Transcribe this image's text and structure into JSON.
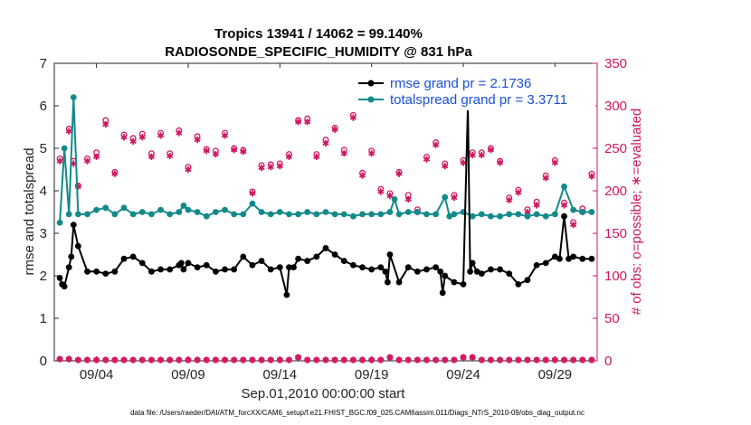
{
  "chart_data": {
    "type": "line",
    "title": "Tropics 13941 / 14062 = 99.140%",
    "subtitle": "RADIOSONDE_SPECIFIC_HUMIDITY @ 831 hPa",
    "xlabel": "Sep.01,2010 00:00:00 start",
    "ylabel": "rmse and totalspread",
    "y2label": "# of obs: o=possible; ∗=evaluated",
    "footnote": "data file: /Users/raeder/DAI/ATM_forcXX/CAM6_setup/f.e21.FHIST_BGC.f09_025.CAM6assim.011/Diags_NTrS_2010-09/obs_diag_output.nc",
    "xlim": [
      1.7,
      31.3
    ],
    "ylim": [
      0,
      7
    ],
    "y2lim": [
      0,
      350
    ],
    "x_ticks": [
      4,
      9,
      14,
      19,
      24,
      29
    ],
    "x_ticklabels": [
      "09/04",
      "09/09",
      "09/14",
      "09/19",
      "09/24",
      "09/29"
    ],
    "y_ticks": [
      0,
      1,
      2,
      3,
      4,
      5,
      6,
      7
    ],
    "y_ticklabels": [
      "0",
      "1",
      "2",
      "3",
      "4",
      "5",
      "6",
      "7"
    ],
    "y2_ticks": [
      0,
      50,
      100,
      150,
      200,
      250,
      300,
      350
    ],
    "y2_ticklabels": [
      "0",
      "50",
      "100",
      "150",
      "200",
      "250",
      "300",
      "350"
    ],
    "legend": [
      "rmse grand pr = 2.1736",
      "totalspread grand pr = 3.3711"
    ],
    "legend_position": "top-right",
    "colors": {
      "rmse": "#000000",
      "spread": "#138a8a",
      "obs": "#d01760",
      "axis": "#262626",
      "legend_text": "#1a4fd6"
    },
    "series": [
      {
        "name": "rmse",
        "x": [
          2.0,
          2.125,
          2.25,
          2.5,
          2.625,
          2.75,
          3.0,
          3.5,
          4.0,
          4.5,
          5.0,
          5.5,
          6.0,
          6.5,
          7.0,
          7.5,
          8.0,
          8.5,
          8.625,
          8.75,
          9.0,
          9.5,
          10.0,
          10.5,
          11.0,
          11.5,
          12.0,
          12.5,
          13.0,
          13.5,
          14.0,
          14.375,
          14.5,
          14.75,
          15.0,
          15.5,
          16.0,
          16.5,
          17.0,
          17.5,
          18.0,
          18.5,
          19.0,
          19.5,
          19.75,
          19.875,
          20.0,
          20.5,
          21.0,
          21.5,
          22.0,
          22.5,
          22.75,
          22.875,
          23.0,
          23.5,
          24.0,
          24.25,
          24.375,
          24.5,
          24.75,
          25.0,
          25.5,
          26.0,
          26.5,
          27.0,
          27.5,
          28.0,
          28.5,
          29.0,
          29.25,
          29.5,
          29.75,
          30.0,
          30.5,
          31.0
        ],
        "values": [
          1.95,
          1.8,
          1.75,
          2.2,
          2.45,
          3.2,
          2.7,
          2.1,
          2.1,
          2.05,
          2.1,
          2.4,
          2.45,
          2.3,
          2.1,
          2.15,
          2.15,
          2.25,
          2.3,
          2.15,
          2.3,
          2.2,
          2.25,
          2.1,
          2.15,
          2.15,
          2.45,
          2.25,
          2.35,
          2.15,
          2.2,
          1.55,
          2.2,
          2.2,
          2.4,
          2.35,
          2.45,
          2.65,
          2.5,
          2.35,
          2.25,
          2.2,
          2.15,
          2.2,
          2.1,
          1.85,
          2.5,
          1.85,
          2.2,
          2.1,
          2.15,
          2.2,
          2.1,
          1.6,
          2.0,
          1.85,
          1.8,
          6.0,
          2.1,
          2.3,
          2.1,
          2.05,
          2.15,
          2.15,
          2.05,
          1.8,
          1.9,
          2.25,
          2.3,
          2.45,
          2.4,
          3.4,
          2.4,
          2.45,
          2.4,
          2.4
        ]
      },
      {
        "name": "totalspread",
        "x": [
          2.0,
          2.25,
          2.5,
          2.75,
          3.0,
          3.5,
          4.0,
          4.5,
          5.0,
          5.5,
          6.0,
          6.5,
          7.0,
          7.5,
          8.0,
          8.5,
          8.75,
          9.0,
          9.5,
          10.0,
          10.5,
          11.0,
          11.5,
          12.0,
          12.5,
          13.0,
          13.5,
          14.0,
          14.5,
          15.0,
          15.5,
          16.0,
          16.5,
          17.0,
          17.5,
          18.0,
          18.5,
          19.0,
          19.5,
          20.0,
          20.25,
          20.5,
          21.0,
          21.5,
          22.0,
          22.5,
          23.0,
          23.25,
          23.5,
          24.0,
          24.5,
          25.0,
          25.5,
          26.0,
          26.5,
          27.0,
          27.5,
          28.0,
          28.5,
          29.0,
          29.5,
          30.0,
          30.5,
          31.0
        ],
        "values": [
          3.25,
          5.0,
          3.45,
          6.2,
          3.45,
          3.45,
          3.55,
          3.6,
          3.45,
          3.6,
          3.45,
          3.5,
          3.45,
          3.55,
          3.45,
          3.5,
          3.65,
          3.55,
          3.5,
          3.4,
          3.5,
          3.55,
          3.45,
          3.45,
          3.7,
          3.5,
          3.45,
          3.5,
          3.45,
          3.45,
          3.5,
          3.45,
          3.5,
          3.45,
          3.45,
          3.4,
          3.45,
          3.45,
          3.45,
          3.5,
          3.8,
          3.45,
          3.5,
          3.5,
          3.45,
          3.45,
          3.85,
          3.4,
          3.45,
          3.5,
          3.4,
          3.45,
          3.4,
          3.4,
          3.45,
          3.45,
          3.4,
          3.45,
          3.4,
          3.45,
          4.1,
          3.55,
          3.5,
          3.5
        ]
      },
      {
        "name": "obs possible (right axis)",
        "x": [
          2.0,
          2.5,
          2.75,
          3.0,
          3.5,
          4.0,
          4.5,
          5.0,
          5.5,
          6.0,
          6.5,
          7.0,
          7.5,
          8.0,
          8.5,
          9.0,
          9.5,
          10.0,
          10.5,
          11.0,
          11.5,
          12.0,
          12.5,
          13.0,
          13.5,
          14.0,
          14.5,
          15.0,
          15.5,
          16.0,
          16.5,
          17.0,
          17.5,
          18.0,
          18.5,
          19.0,
          19.5,
          20.0,
          20.5,
          21.0,
          21.5,
          22.0,
          22.5,
          23.0,
          23.5,
          24.0,
          24.5,
          25.0,
          25.5,
          26.0,
          26.5,
          27.0,
          27.5,
          28.0,
          28.5,
          29.0,
          29.5,
          30.0,
          30.5,
          31.0
        ],
        "values": [
          238,
          273,
          235,
          206,
          238,
          245,
          283,
          222,
          266,
          262,
          267,
          244,
          268,
          244,
          271,
          228,
          264,
          249,
          247,
          268,
          250,
          248,
          199,
          230,
          231,
          232,
          243,
          283,
          285,
          243,
          260,
          274,
          248,
          289,
          221,
          247,
          202,
          197,
          222,
          195,
          178,
          240,
          257,
          232,
          195,
          236,
          245,
          245,
          250,
          235,
          192,
          201,
          178,
          187,
          218,
          236,
          186,
          163,
          179,
          220
        ],
        "note": "estimated circles above star markers"
      },
      {
        "name": "obs evaluated (right axis)",
        "x": [
          2.0,
          2.5,
          2.75,
          3.0,
          3.5,
          4.0,
          4.5,
          5.0,
          5.5,
          6.0,
          6.5,
          7.0,
          7.5,
          8.0,
          8.5,
          9.0,
          9.5,
          10.0,
          10.5,
          11.0,
          11.5,
          12.0,
          12.5,
          13.0,
          13.5,
          14.0,
          14.5,
          15.0,
          15.5,
          16.0,
          16.5,
          17.0,
          17.5,
          18.0,
          18.5,
          19.0,
          19.5,
          20.0,
          20.5,
          21.0,
          21.5,
          22.0,
          22.5,
          23.0,
          23.5,
          24.0,
          24.5,
          25.0,
          25.5,
          26.0,
          26.5,
          27.0,
          27.5,
          28.0,
          28.5,
          29.0,
          29.5,
          30.0,
          30.5,
          31.0
        ],
        "values": [
          235,
          270,
          232,
          205,
          235,
          240,
          278,
          220,
          263,
          258,
          263,
          240,
          265,
          241,
          268,
          225,
          260,
          247,
          243,
          265,
          248,
          246,
          197,
          227,
          228,
          229,
          240,
          281,
          281,
          240,
          256,
          272,
          244,
          286,
          218,
          244,
          199,
          194,
          220,
          190,
          175,
          237,
          254,
          229,
          192,
          233,
          242,
          242,
          248,
          233,
          189,
          198,
          175,
          183,
          215,
          233,
          183,
          160,
          175,
          217
        ]
      }
    ],
    "bottom_markers": {
      "name": "obs near zero (right axis)",
      "x": [
        2.0,
        2.5,
        3.0,
        3.5,
        4.0,
        4.5,
        5.0,
        5.5,
        6.0,
        6.5,
        7.0,
        7.5,
        8.0,
        8.5,
        9.0,
        9.5,
        10.0,
        10.5,
        11.0,
        11.5,
        12.0,
        12.5,
        13.0,
        13.5,
        14.0,
        14.5,
        15.0,
        15.5,
        16.0,
        16.5,
        17.0,
        17.5,
        18.0,
        18.5,
        19.0,
        19.5,
        20.0,
        20.5,
        21.0,
        21.5,
        22.0,
        22.5,
        23.0,
        23.5,
        24.0,
        24.5,
        25.0,
        25.5,
        26.0,
        26.5,
        27.0,
        27.5,
        28.0,
        28.5,
        29.0,
        29.5,
        30.0,
        30.5,
        31.0
      ],
      "values": [
        2,
        2,
        1,
        1,
        1,
        1,
        1,
        1,
        1,
        1,
        1,
        1,
        1,
        1,
        1,
        1,
        1,
        1,
        1,
        1,
        1,
        1,
        1,
        1,
        1,
        1,
        4,
        1,
        1,
        1,
        1,
        1,
        1,
        1,
        1,
        1,
        4,
        1,
        1,
        1,
        1,
        1,
        1,
        1,
        4,
        4,
        1,
        1,
        1,
        1,
        1,
        1,
        1,
        1,
        1,
        1,
        1,
        1,
        1
      ]
    }
  }
}
